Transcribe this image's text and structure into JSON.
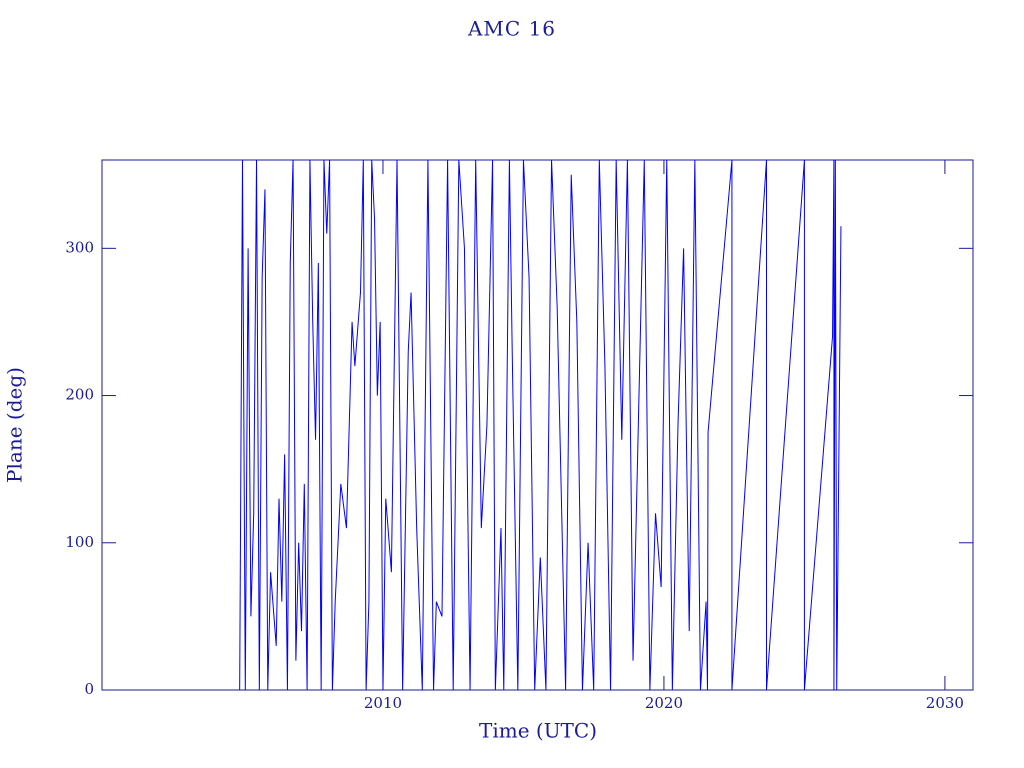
{
  "chart_data": {
    "type": "line",
    "title": "AMC 16",
    "xlabel": "Time (UTC)",
    "ylabel": "Plane (deg)",
    "x": [
      2004.9,
      2005.0,
      2005.1,
      2005.2,
      2005.3,
      2005.4,
      2005.5,
      2005.6,
      2005.7,
      2005.8,
      2005.9,
      2006.0,
      2006.2,
      2006.3,
      2006.4,
      2006.5,
      2006.6,
      2006.7,
      2006.8,
      2006.9,
      2007.0,
      2007.1,
      2007.2,
      2007.3,
      2007.4,
      2007.5,
      2007.6,
      2007.7,
      2007.8,
      2007.9,
      2008.0,
      2008.1,
      2008.2,
      2008.3,
      2008.5,
      2008.7,
      2008.9,
      2009.0,
      2009.2,
      2009.3,
      2009.4,
      2009.5,
      2009.6,
      2009.7,
      2009.8,
      2009.9,
      2010.0,
      2010.1,
      2010.3,
      2010.5,
      2010.7,
      2010.9,
      2011.0,
      2011.2,
      2011.4,
      2011.6,
      2011.8,
      2011.9,
      2012.1,
      2012.3,
      2012.5,
      2012.7,
      2012.9,
      2013.1,
      2013.3,
      2013.5,
      2013.7,
      2013.9,
      2014.0,
      2014.2,
      2014.3,
      2014.5,
      2014.6,
      2014.8,
      2015.0,
      2015.2,
      2015.4,
      2015.6,
      2015.8,
      2016.0,
      2016.2,
      2016.5,
      2016.7,
      2016.9,
      2017.1,
      2017.3,
      2017.5,
      2017.7,
      2017.9,
      2018.1,
      2018.3,
      2018.5,
      2018.7,
      2018.9,
      2019.1,
      2019.3,
      2019.5,
      2019.7,
      2019.9,
      2020.1,
      2020.3,
      2020.5,
      2020.7,
      2020.9,
      2021.1,
      2021.3,
      2021.5,
      2021.55,
      2021.57,
      2022.42,
      2022.42,
      2023.65,
      2023.65,
      2025.0,
      2025.0,
      2026.0,
      2026.05,
      2026.05,
      2026.1,
      2026.15,
      2026.3
    ],
    "series": [
      {
        "color": "#0000ff",
        "values": [
          0,
          360,
          0,
          300,
          50,
          120,
          360,
          0,
          280,
          340,
          0,
          80,
          30,
          130,
          60,
          160,
          0,
          290,
          360,
          20,
          100,
          40,
          140,
          0,
          360,
          250,
          170,
          290,
          0,
          360,
          310,
          360,
          0,
          60,
          140,
          110,
          250,
          220,
          270,
          360,
          0,
          60,
          360,
          320,
          200,
          250,
          0,
          130,
          80,
          360,
          0,
          230,
          270,
          110,
          0,
          360,
          0,
          60,
          50,
          360,
          0,
          360,
          300,
          0,
          360,
          110,
          180,
          360,
          0,
          110,
          0,
          360,
          230,
          0,
          360,
          280,
          0,
          90,
          0,
          360,
          260,
          0,
          350,
          250,
          0,
          100,
          0,
          360,
          220,
          0,
          360,
          170,
          360,
          20,
          190,
          360,
          0,
          120,
          70,
          360,
          0,
          180,
          300,
          40,
          360,
          0,
          60,
          0,
          175,
          360,
          0,
          360,
          0,
          360,
          0,
          240,
          360,
          0,
          360,
          0,
          315
        ]
      }
    ],
    "xlim": [
      2000,
      2031
    ],
    "ylim": [
      0,
      360
    ],
    "xticks": [
      2010,
      2020,
      2030
    ],
    "yticks": [
      0,
      100,
      200,
      300
    ]
  }
}
